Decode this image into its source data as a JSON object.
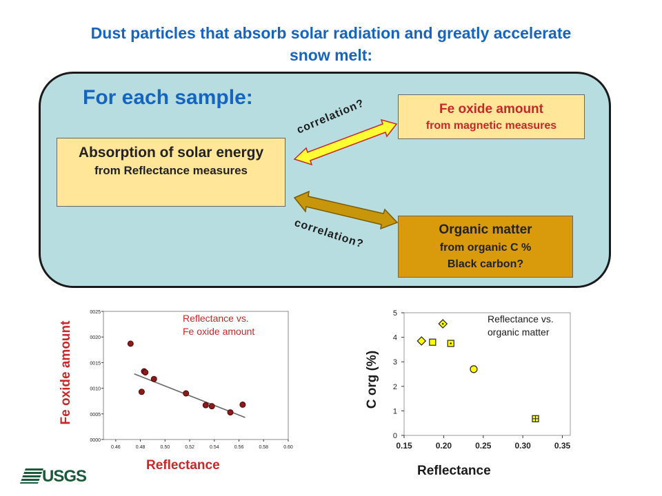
{
  "title": "Dust particles that absorb solar radiation and greatly accelerate snow melt:",
  "panel": {
    "heading": "For each sample:",
    "absorption": {
      "main": "Absorption of solar energy",
      "sub": "from Reflectance measures"
    },
    "fe_box": {
      "main": "Fe oxide amount",
      "sub": "from magnetic measures"
    },
    "om_box": {
      "main": "Organic matter",
      "sub1": "from organic C %",
      "sub2": "Black carbon?"
    },
    "corr_top": "correlation?",
    "corr_bottom": "correlation?"
  },
  "colors": {
    "title": "#1565c0",
    "panel_bg": "#b7dde0",
    "box_light": "#ffe699",
    "box_dark": "#d99a0b",
    "red": "#c62828"
  },
  "chart_data": [
    {
      "type": "scatter",
      "xlabel": "Reflectance",
      "ylabel": "Fe oxide amount",
      "annotation": [
        "Reflectance vs.",
        "Fe oxide amount"
      ],
      "xlim": [
        0.45,
        0.6
      ],
      "ylim": [
        0.0,
        0.0025
      ],
      "xticks": [
        "0.46",
        "0.48",
        "0.50",
        "0.52",
        "0.54",
        "0.56",
        "0.58",
        "0.60"
      ],
      "yticks": [
        "0.0000",
        "0.0005",
        "0.0010",
        "0.0015",
        "0.0020",
        "0.0025"
      ],
      "points": [
        {
          "x": 0.472,
          "y": 0.00187
        },
        {
          "x": 0.481,
          "y": 0.00093
        },
        {
          "x": 0.483,
          "y": 0.00133
        },
        {
          "x": 0.484,
          "y": 0.00131
        },
        {
          "x": 0.491,
          "y": 0.00118
        },
        {
          "x": 0.517,
          "y": 0.0009
        },
        {
          "x": 0.533,
          "y": 0.00067
        },
        {
          "x": 0.538,
          "y": 0.00065
        },
        {
          "x": 0.553,
          "y": 0.00053
        },
        {
          "x": 0.563,
          "y": 0.00068
        }
      ],
      "trendline": [
        {
          "x": 0.475,
          "y": 0.00128
        },
        {
          "x": 0.565,
          "y": 0.00043
        }
      ]
    },
    {
      "type": "scatter",
      "xlabel": "Reflectance",
      "ylabel": "C org (%)",
      "annotation": [
        "Reflectance vs.",
        "organic matter"
      ],
      "xlim": [
        0.15,
        0.36
      ],
      "ylim": [
        0,
        5
      ],
      "xticks": [
        "0.15",
        "0.20",
        "0.25",
        "0.30",
        "0.35"
      ],
      "yticks": [
        "0",
        "1",
        "2",
        "3",
        "4",
        "5"
      ],
      "points": [
        {
          "x": 0.172,
          "y": 3.85,
          "marker": "diamond"
        },
        {
          "x": 0.186,
          "y": 3.8,
          "marker": "square"
        },
        {
          "x": 0.199,
          "y": 4.55,
          "marker": "diamond-dot"
        },
        {
          "x": 0.209,
          "y": 3.75,
          "marker": "square-dot"
        },
        {
          "x": 0.238,
          "y": 2.7,
          "marker": "circle"
        },
        {
          "x": 0.316,
          "y": 0.68,
          "marker": "square-plus"
        }
      ]
    }
  ]
}
